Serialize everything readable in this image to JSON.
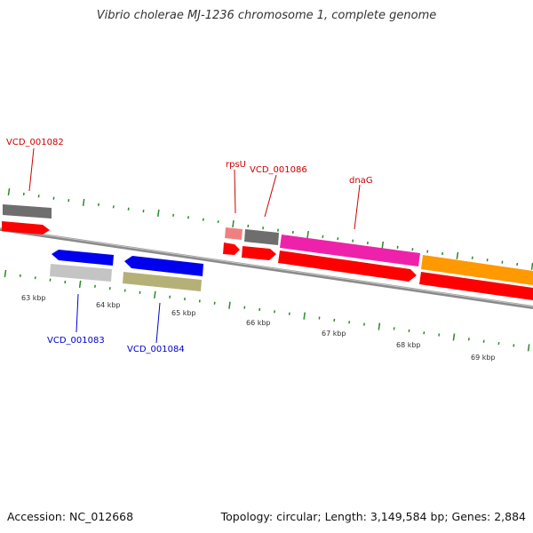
{
  "title": "Vibrio cholerae MJ-1236 chromosome 1, complete genome",
  "footer": {
    "accession": "Accession: NC_012668",
    "stats": "Topology: circular; Length: 3,149,584 bp; Genes: 2,884"
  },
  "colors": {
    "background": "#ffffff",
    "backbone": "#8a8a8a",
    "tick": "#2a8a2a",
    "label_forward": "#cc0000",
    "label_reverse": "#0000cc",
    "gene_gray": "#6e6e6e",
    "gene_red": "#ff0000",
    "gene_pink": "#f070a0",
    "gene_magenta": "#ee22aa",
    "gene_orange": "#ff9900",
    "gene_blue": "#0000ee",
    "gene_lightgray": "#c4c4c4",
    "gene_olive": "#b5b078"
  },
  "scale_labels": [
    {
      "kbp": 63,
      "label": "63 kbp"
    },
    {
      "kbp": 64,
      "label": "64 kbp"
    },
    {
      "kbp": 65,
      "label": "65 kbp"
    },
    {
      "kbp": 66,
      "label": "66 kbp"
    },
    {
      "kbp": 67,
      "label": "67 kbp"
    },
    {
      "kbp": 68,
      "label": "68 kbp"
    },
    {
      "kbp": 69,
      "label": "69 kbp"
    }
  ],
  "gene_labels": [
    {
      "text": "VCD_001082",
      "strand": "forward"
    },
    {
      "text": "rpsU",
      "strand": "forward"
    },
    {
      "text": "VCD_001086",
      "strand": "forward"
    },
    {
      "text": "dnaG",
      "strand": "forward"
    },
    {
      "text": "VCD_001083",
      "strand": "reverse"
    },
    {
      "text": "VCD_001084",
      "strand": "reverse"
    }
  ]
}
